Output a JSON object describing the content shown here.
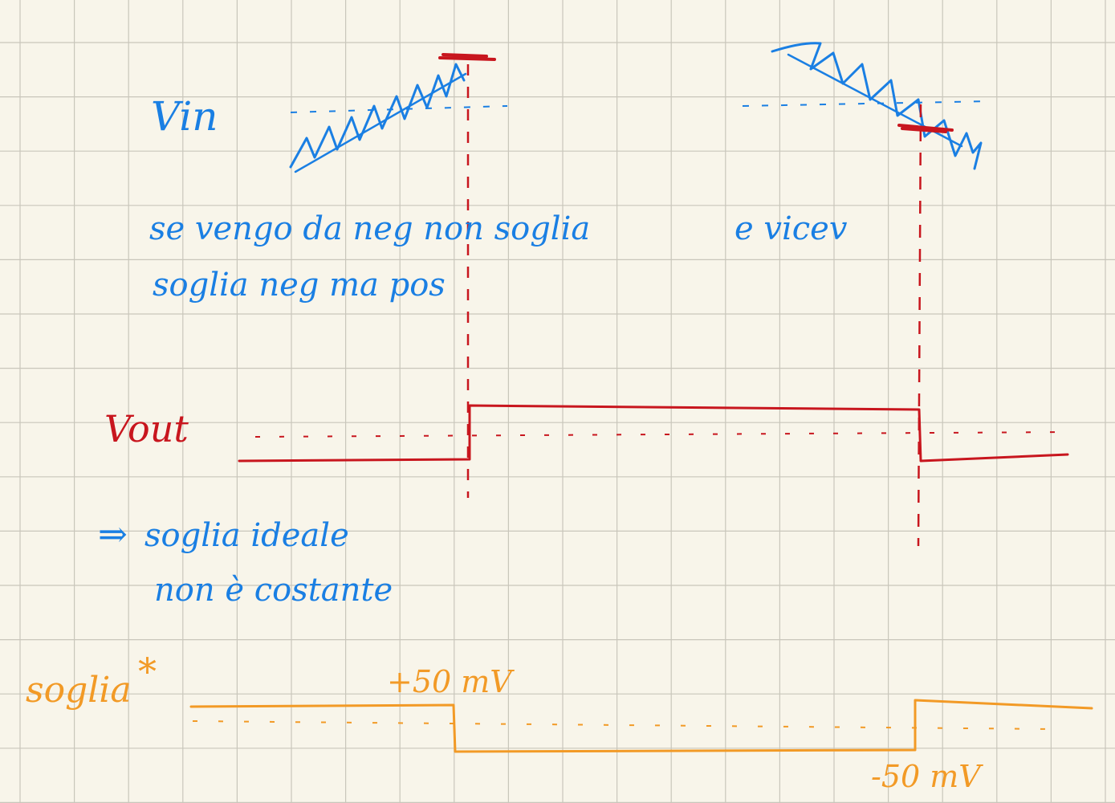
{
  "colors": {
    "paper": "#f8f5ea",
    "grid": "#c9c6bb",
    "blue": "#1a7fe3",
    "red": "#c8161e",
    "orange": "#f29a26"
  },
  "labels": {
    "vin": "Vin",
    "vout": "Vout",
    "note_line1": "se vengo da neg non soglia",
    "note_line1_right": "e vicev",
    "note_line2": "soglia neg ma pos",
    "conclusion_arrow": "⇒",
    "conclusion_line1": "soglia ideale",
    "conclusion_line2": "non è costante",
    "soglia": "soglia",
    "soglia_star": "*",
    "plus_threshold": "+50 mV",
    "minus_threshold": "-50 mV"
  }
}
